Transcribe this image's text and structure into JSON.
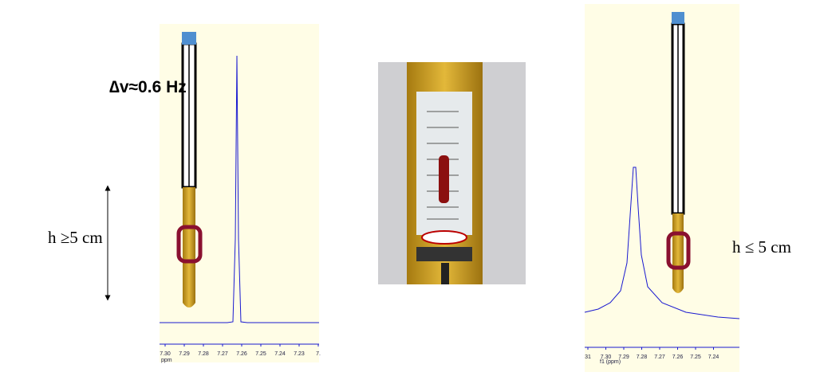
{
  "left_panel": {
    "annotation": "∆v≈0.6 Hz",
    "height_label": "h ≥5 cm",
    "axis_ticks": [
      "7.30",
      "7.29",
      "7.28",
      "7.27",
      "7.26",
      "7.25",
      "7.24",
      "7.23",
      "7."
    ],
    "axis_unit": "ppm"
  },
  "right_panel": {
    "height_label": "h ≤ 5 cm",
    "axis_ticks": [
      "31",
      "7.30",
      "7.29",
      "7.28",
      "7.27",
      "7.26",
      "7.25",
      "7.24"
    ],
    "axis_unit": "f1 (ppm)"
  }
}
